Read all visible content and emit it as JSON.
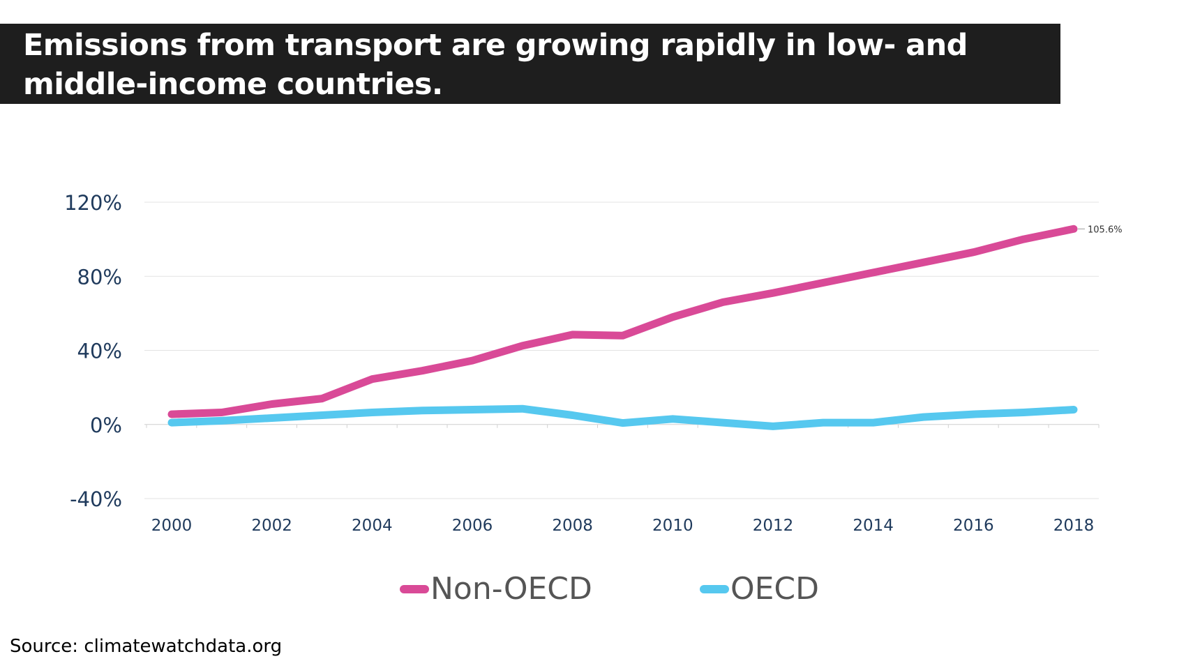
{
  "title": "Emissions from transport are growing rapidly in low- and middle-income countries.",
  "source": "Source: climatewatchdata.org",
  "chart_data": {
    "type": "line",
    "title": "Emissions from transport are growing rapidly in low- and middle-income countries.",
    "xlabel": "",
    "ylabel": "",
    "x": [
      2000,
      2001,
      2002,
      2003,
      2004,
      2005,
      2006,
      2007,
      2008,
      2009,
      2010,
      2011,
      2012,
      2013,
      2014,
      2015,
      2016,
      2017,
      2018
    ],
    "x_ticks": [
      "2000",
      "2002",
      "2004",
      "2006",
      "2008",
      "2010",
      "2012",
      "2014",
      "2016",
      "2018"
    ],
    "y_ticks": [
      "120%",
      "80%",
      "40%",
      "0%",
      "-40%"
    ],
    "ylim": [
      -40,
      120
    ],
    "y_tick_values": [
      120,
      80,
      40,
      0,
      -40
    ],
    "grid": true,
    "legend_position": "bottom",
    "series": [
      {
        "name": "Non-OECD",
        "color": "#d94a97",
        "values": [
          5.5,
          6.5,
          11,
          14,
          24.5,
          29,
          34.5,
          42.5,
          48.5,
          48,
          58,
          66,
          71,
          76.5,
          82,
          87.5,
          93,
          100,
          105.6
        ]
      },
      {
        "name": "OECD",
        "color": "#56c8ef",
        "values": [
          1,
          2,
          3.5,
          5,
          6.5,
          7.5,
          8,
          8.5,
          5,
          0.8,
          3,
          1,
          -1,
          1,
          1,
          4,
          5.5,
          6.5,
          8
        ]
      }
    ],
    "annotations": [
      {
        "series": "Non-OECD",
        "x": 2018,
        "label": "105.6%"
      }
    ]
  }
}
